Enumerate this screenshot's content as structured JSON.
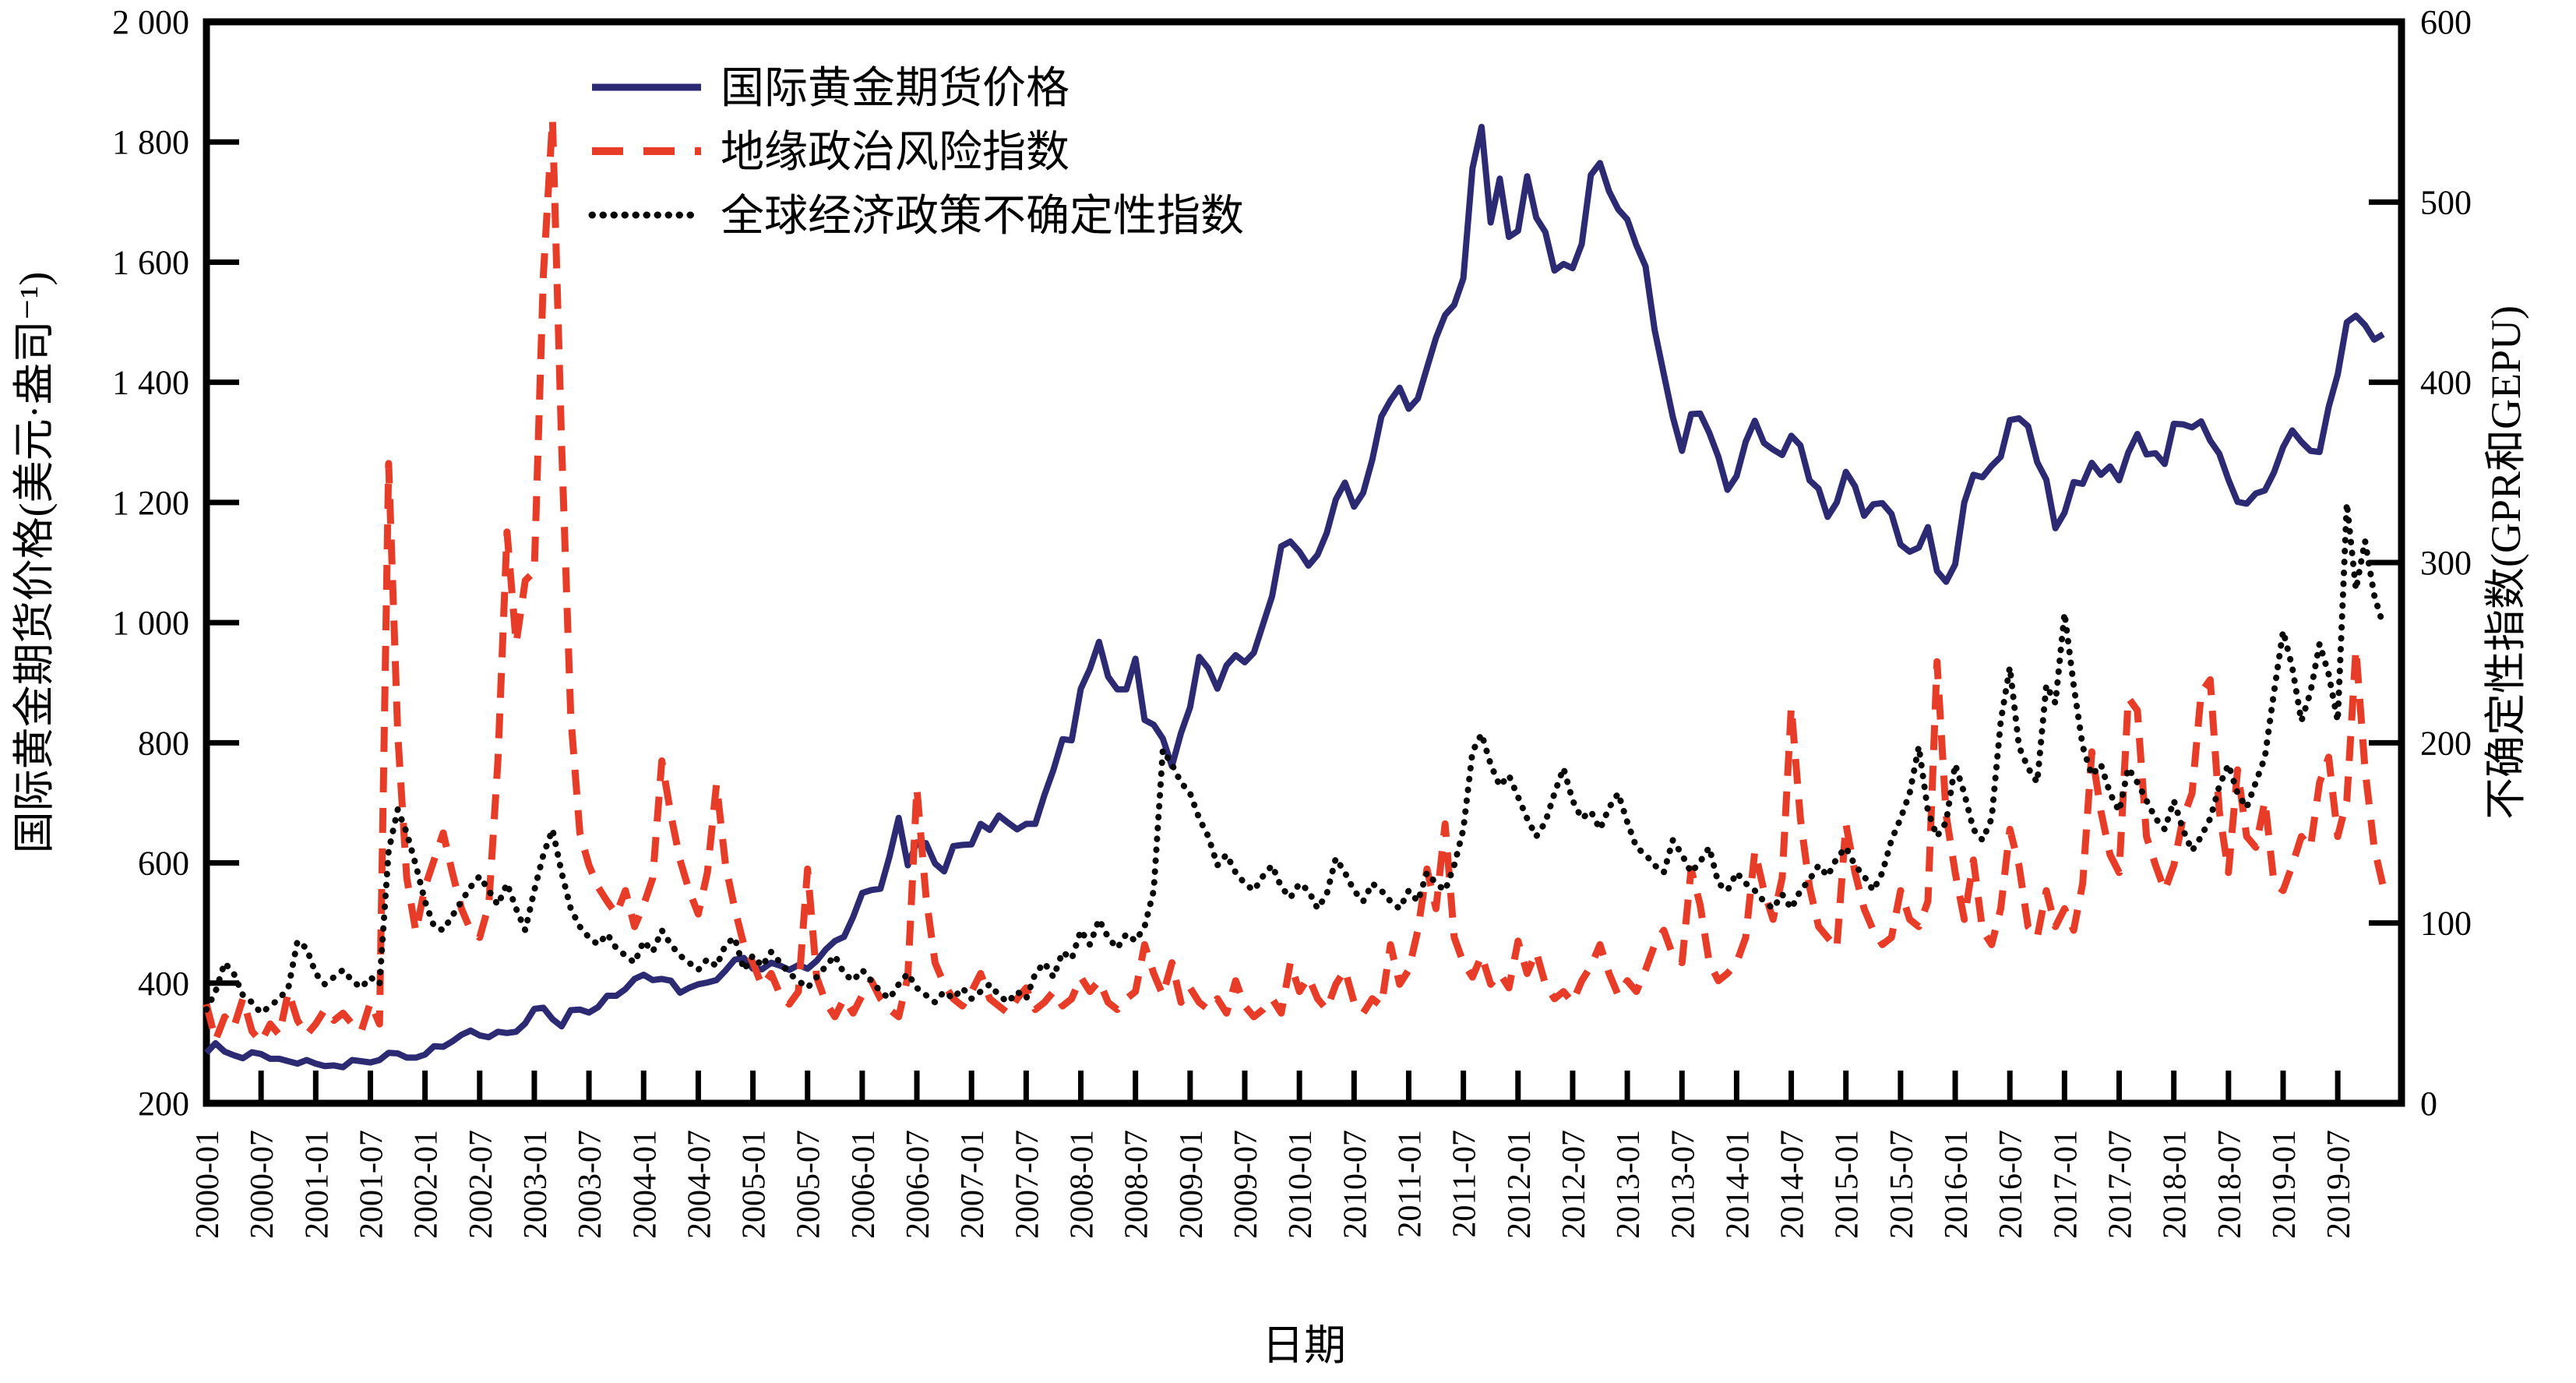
{
  "figure": {
    "background": "#ffffff",
    "x_axis_title": "日期",
    "left_axis_title": "国际黄金期货价格(美元·盎司⁻¹)",
    "right_axis_title": "不确定性指数(GPR和GEPU)"
  },
  "chart_data": {
    "type": "line",
    "x_frequency": "monthly",
    "x_start": "2000-01",
    "x_end": "2019-12",
    "n_points": 240,
    "grid": false,
    "legend_position": "upper-left-inside",
    "x_tick_labels": [
      "2000-01",
      "2000-07",
      "2001-01",
      "2001-07",
      "2002-01",
      "2002-07",
      "2003-01",
      "2003-07",
      "2004-01",
      "2004-07",
      "2005-01",
      "2005-07",
      "2006-01",
      "2006-07",
      "2007-01",
      "2007-07",
      "2008-01",
      "2008-07",
      "2009-01",
      "2009-07",
      "2010-01",
      "2010-07",
      "2011-01",
      "2011-07",
      "2012-01",
      "2012-07",
      "2013-01",
      "2013-07",
      "2014-01",
      "2014-07",
      "2015-01",
      "2015-07",
      "2016-01",
      "2016-07",
      "2017-01",
      "2017-07",
      "2018-01",
      "2018-07",
      "2019-01",
      "2019-07"
    ],
    "left_axis": {
      "range": [
        200,
        2000
      ],
      "tick_values": [
        200,
        400,
        600,
        800,
        1000,
        1200,
        1400,
        1600,
        1800,
        2000
      ],
      "tick_labels": [
        "200",
        "400",
        "600",
        "800",
        "1 000",
        "1 200",
        "1 400",
        "1 600",
        "1 800",
        "2 000"
      ]
    },
    "right_axis": {
      "range": [
        0,
        600
      ],
      "tick_values": [
        0,
        100,
        200,
        300,
        400,
        500,
        600
      ],
      "tick_labels": [
        "0",
        "100",
        "200",
        "300",
        "400",
        "500",
        "600"
      ]
    },
    "series": [
      {
        "name": "国际黄金期货价格",
        "axis": "left",
        "color": "#2b2a72",
        "line_style": "solid",
        "values": [
          284,
          300,
          286,
          280,
          275,
          285,
          282,
          274,
          274,
          270,
          266,
          272,
          266,
          262,
          263,
          260,
          272,
          270,
          268,
          272,
          284,
          283,
          276,
          276,
          281,
          295,
          294,
          303,
          314,
          321,
          313,
          310,
          319,
          317,
          319,
          333,
          357,
          359,
          340,
          328,
          355,
          356,
          351,
          360,
          379,
          379,
          390,
          407,
          414,
          405,
          407,
          404,
          384,
          392,
          398,
          401,
          405,
          421,
          439,
          442,
          424,
          423,
          434,
          429,
          422,
          430,
          424,
          437,
          456,
          470,
          477,
          510,
          550,
          555,
          557,
          611,
          675,
          596,
          634,
          633,
          599,
          586,
          628,
          630,
          631,
          665,
          655,
          679,
          667,
          656,
          665,
          665,
          713,
          755,
          806,
          804,
          890,
          923,
          968,
          910,
          889,
          889,
          940,
          838,
          830,
          807,
          761,
          816,
          859,
          943,
          924,
          890,
          929,
          946,
          934,
          950,
          997,
          1044,
          1127,
          1135,
          1118,
          1095,
          1113,
          1149,
          1205,
          1233,
          1193,
          1216,
          1271,
          1343,
          1370,
          1391,
          1356,
          1373,
          1424,
          1474,
          1512,
          1529,
          1573,
          1756,
          1825,
          1666,
          1739,
          1642,
          1652,
          1743,
          1674,
          1650,
          1586,
          1597,
          1590,
          1630,
          1745,
          1765,
          1718,
          1688,
          1671,
          1628,
          1593,
          1487,
          1414,
          1342,
          1286,
          1347,
          1348,
          1316,
          1276,
          1221,
          1244,
          1301,
          1336,
          1299,
          1288,
          1279,
          1311,
          1295,
          1237,
          1223,
          1176,
          1200,
          1251,
          1227,
          1178,
          1197,
          1199,
          1181,
          1130,
          1118,
          1125,
          1159,
          1086,
          1068,
          1097,
          1200,
          1246,
          1242,
          1261,
          1276,
          1337,
          1340,
          1327,
          1267,
          1238,
          1157,
          1183,
          1234,
          1231,
          1266,
          1246,
          1260,
          1237,
          1283,
          1314,
          1280,
          1282,
          1264,
          1331,
          1330,
          1325,
          1335,
          1303,
          1281,
          1238,
          1201,
          1198,
          1215,
          1220,
          1250,
          1292,
          1320,
          1301,
          1286,
          1284,
          1359,
          1413,
          1500,
          1511,
          1495,
          1471,
          1480
        ]
      },
      {
        "name": "地缘政治风险指数",
        "axis": "right",
        "color": "#e73c27",
        "line_style": "dashed",
        "values": [
          55,
          35,
          48,
          42,
          58,
          40,
          34,
          44,
          38,
          62,
          46,
          38,
          44,
          52,
          46,
          50,
          44,
          40,
          56,
          44,
          355,
          205,
          125,
          95,
          120,
          135,
          150,
          128,
          108,
          96,
          92,
          110,
          190,
          317,
          255,
          290,
          295,
          460,
          546,
          365,
          215,
          150,
          132,
          120,
          112,
          105,
          118,
          98,
          110,
          125,
          190,
          160,
          135,
          118,
          105,
          128,
          177,
          132,
          108,
          88,
          78,
          65,
          72,
          60,
          55,
          62,
          130,
          70,
          56,
          48,
          58,
          50,
          60,
          68,
          58,
          52,
          48,
          70,
          175,
          115,
          78,
          66,
          58,
          54,
          62,
          72,
          58,
          54,
          50,
          58,
          64,
          52,
          56,
          62,
          54,
          58,
          70,
          62,
          68,
          56,
          52,
          58,
          62,
          88,
          72,
          60,
          78,
          56,
          64,
          56,
          52,
          58,
          50,
          68,
          54,
          48,
          52,
          58,
          50,
          78,
          62,
          70,
          58,
          52,
          66,
          74,
          56,
          50,
          58,
          54,
          88,
          66,
          74,
          96,
          130,
          108,
          155,
          92,
          78,
          70,
          82,
          66,
          72,
          64,
          90,
          72,
          84,
          66,
          58,
          62,
          56,
          68,
          76,
          88,
          72,
          60,
          68,
          62,
          74,
          88,
          96,
          82,
          78,
          130,
          110,
          78,
          68,
          72,
          78,
          92,
          140,
          118,
          102,
          125,
          220,
          158,
          120,
          98,
          92,
          86,
          155,
          128,
          108,
          96,
          88,
          92,
          118,
          102,
          98,
          112,
          245,
          160,
          128,
          102,
          135,
          96,
          88,
          108,
          152,
          132,
          98,
          92,
          118,
          98,
          108,
          96,
          122,
          195,
          162,
          138,
          128,
          225,
          218,
          148,
          132,
          118,
          132,
          158,
          172,
          228,
          235,
          162,
          128,
          185,
          148,
          142,
          168,
          122,
          118,
          132,
          148,
          142,
          178,
          192,
          148,
          168,
          252,
          185,
          142,
          120
        ]
      },
      {
        "name": "全球经济政策不确定性指数",
        "axis": "right",
        "color": "#0a0a0a",
        "line_style": "dotted",
        "values": [
          52,
          62,
          78,
          72,
          60,
          56,
          50,
          54,
          58,
          64,
          90,
          86,
          72,
          66,
          70,
          74,
          68,
          64,
          70,
          66,
          140,
          163,
          150,
          132,
          112,
          98,
          96,
          104,
          112,
          120,
          126,
          118,
          110,
          122,
          108,
          96,
          118,
          138,
          152,
          128,
          108,
          98,
          92,
          88,
          94,
          86,
          82,
          78,
          90,
          84,
          96,
          88,
          82,
          78,
          74,
          80,
          76,
          88,
          92,
          74,
          82,
          76,
          84,
          78,
          72,
          68,
          64,
          70,
          76,
          82,
          72,
          68,
          74,
          68,
          62,
          58,
          66,
          72,
          64,
          60,
          56,
          62,
          58,
          64,
          58,
          62,
          66,
          60,
          56,
          62,
          58,
          72,
          78,
          70,
          84,
          80,
          96,
          88,
          102,
          92,
          86,
          94,
          90,
          98,
          118,
          196,
          188,
          178,
          172,
          158,
          148,
          132,
          138,
          128,
          122,
          118,
          126,
          132,
          120,
          114,
          122,
          118,
          108,
          116,
          136,
          128,
          118,
          112,
          122,
          118,
          112,
          108,
          118,
          112,
          128,
          122,
          118,
          132,
          152,
          195,
          205,
          188,
          176,
          182,
          170,
          158,
          148,
          156,
          172,
          186,
          168,
          158,
          162,
          152,
          164,
          172,
          156,
          142,
          138,
          132,
          128,
          146,
          138,
          128,
          134,
          142,
          122,
          118,
          128,
          122,
          118,
          112,
          108,
          116,
          108,
          118,
          124,
          132,
          126,
          136,
          142,
          132,
          126,
          118,
          128,
          146,
          158,
          172,
          198,
          162,
          148,
          156,
          188,
          172,
          152,
          146,
          158,
          212,
          242,
          198,
          186,
          178,
          232,
          222,
          272,
          232,
          198,
          182,
          188,
          172,
          162,
          186,
          178,
          168,
          158,
          152,
          168,
          152,
          140,
          148,
          158,
          176,
          188,
          172,
          164,
          178,
          192,
          228,
          262,
          242,
          212,
          228,
          255,
          238,
          212,
          333,
          285,
          312,
          282,
          265
        ]
      }
    ]
  }
}
